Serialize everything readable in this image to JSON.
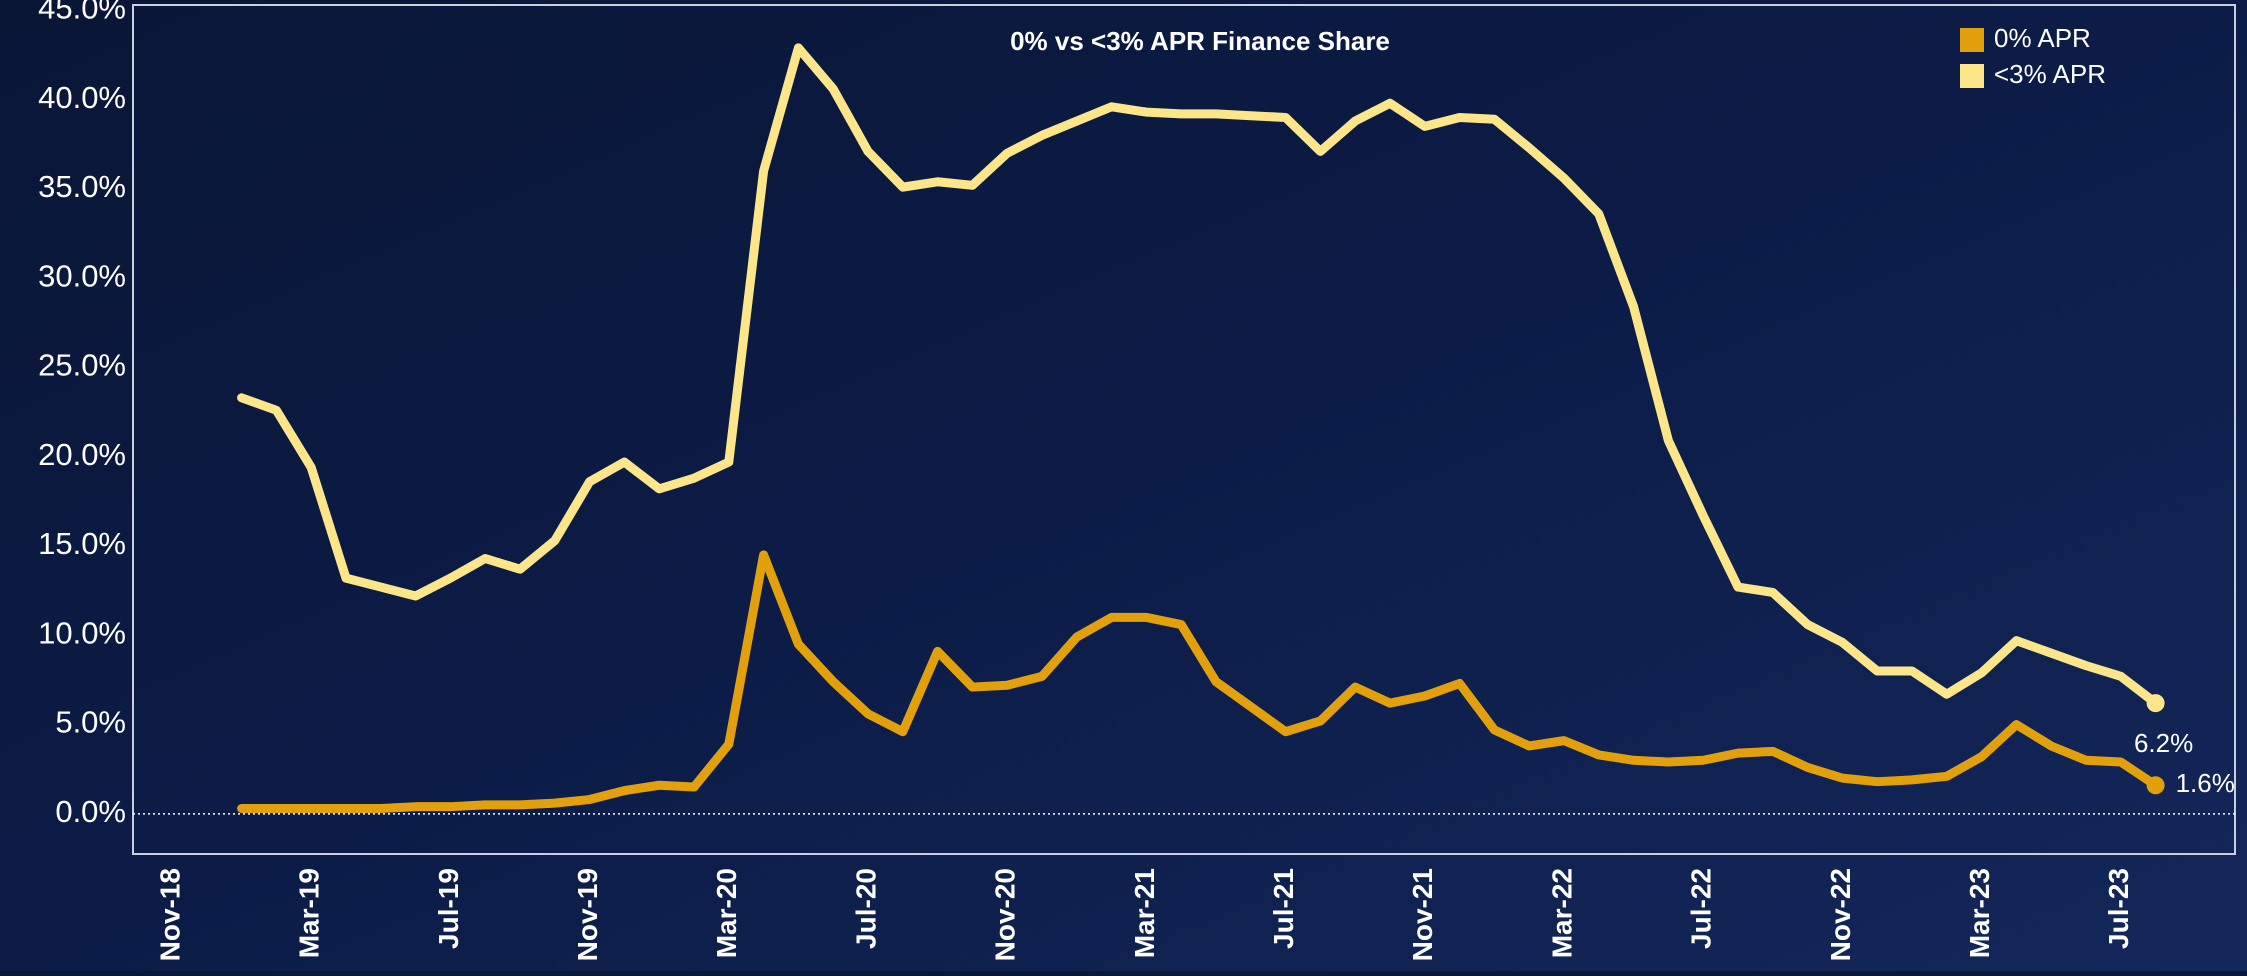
{
  "chart_data": {
    "type": "line",
    "title": "0% vs <3% APR Finance Share",
    "categories": [
      "Nov-18",
      null,
      null,
      null,
      "Mar-19",
      null,
      null,
      null,
      "Jul-19",
      null,
      null,
      null,
      "Nov-19",
      null,
      null,
      null,
      "Mar-20",
      null,
      null,
      null,
      "Jul-20",
      null,
      null,
      null,
      "Nov-20",
      null,
      null,
      null,
      "Mar-21",
      null,
      null,
      null,
      "Jul-21",
      null,
      null,
      null,
      "Nov-21",
      null,
      null,
      null,
      "Mar-22",
      null,
      null,
      null,
      "Jul-22",
      null,
      null,
      null,
      "Nov-22",
      null,
      null,
      null,
      "Mar-23",
      null,
      null,
      null,
      "Jul-23",
      null
    ],
    "series": [
      {
        "name": "0% APR",
        "color": "#e3a00d",
        "values": [
          null,
          null,
          0.3,
          0.3,
          0.3,
          0.3,
          0.3,
          0.4,
          0.4,
          0.5,
          0.5,
          0.6,
          0.8,
          1.3,
          1.6,
          1.5,
          3.9,
          14.5,
          9.5,
          7.4,
          5.6,
          4.6,
          9.1,
          7.1,
          7.2,
          7.7,
          9.9,
          11.0,
          11.0,
          10.6,
          7.4,
          6.0,
          4.6,
          5.2,
          7.1,
          6.2,
          6.6,
          7.3,
          4.7,
          3.8,
          4.1,
          3.3,
          3.0,
          2.9,
          3.0,
          3.4,
          3.5,
          2.6,
          2.0,
          1.8,
          1.9,
          2.1,
          3.2,
          5.0,
          3.8,
          3.0,
          2.9,
          1.6
        ],
        "value_labels": [
          null,
          null,
          null,
          null,
          null,
          null,
          null,
          null,
          null,
          null,
          null,
          null,
          null,
          null,
          null,
          null,
          null,
          null,
          null,
          null,
          null,
          null,
          null,
          null,
          null,
          null,
          null,
          null,
          null,
          null,
          null,
          null,
          null,
          null,
          null,
          null,
          null,
          null,
          null,
          null,
          null,
          null,
          null,
          null,
          null,
          null,
          null,
          null,
          null,
          null,
          null,
          null,
          null,
          null,
          null,
          null,
          null,
          "1.6%"
        ]
      },
      {
        "name": "<3% APR",
        "color": "#fde58a",
        "values": [
          null,
          null,
          23.3,
          22.6,
          19.4,
          13.2,
          12.7,
          12.2,
          13.2,
          14.3,
          13.7,
          15.3,
          18.6,
          19.7,
          18.2,
          18.8,
          19.7,
          36.0,
          42.9,
          40.6,
          37.1,
          35.1,
          35.4,
          35.2,
          37.0,
          38.0,
          38.8,
          39.6,
          39.3,
          39.2,
          39.2,
          39.1,
          39.0,
          37.1,
          38.8,
          39.8,
          38.5,
          39.0,
          38.9,
          37.3,
          35.6,
          33.6,
          28.4,
          20.9,
          16.7,
          12.7,
          12.4,
          10.6,
          9.6,
          8.0,
          8.0,
          6.7,
          7.9,
          9.7,
          9.0,
          8.3,
          7.7,
          6.2
        ],
        "value_labels": [
          null,
          null,
          null,
          null,
          null,
          null,
          null,
          null,
          null,
          null,
          null,
          null,
          null,
          null,
          null,
          null,
          null,
          null,
          null,
          null,
          null,
          null,
          null,
          null,
          null,
          null,
          null,
          null,
          null,
          null,
          null,
          null,
          null,
          null,
          null,
          null,
          null,
          null,
          null,
          null,
          null,
          null,
          null,
          null,
          null,
          null,
          null,
          null,
          null,
          null,
          null,
          null,
          null,
          null,
          null,
          null,
          null,
          "6.2%"
        ]
      }
    ],
    "ylim": [
      -2.25,
      45.3
    ],
    "yticks": [
      {
        "value": 0,
        "label": "0.0%"
      },
      {
        "value": 5,
        "label": "5.0%"
      },
      {
        "value": 10,
        "label": "10.0%"
      },
      {
        "value": 15,
        "label": "15.0%"
      },
      {
        "value": 20,
        "label": "20.0%"
      },
      {
        "value": 25,
        "label": "25.0%"
      },
      {
        "value": 30,
        "label": "30.0%"
      },
      {
        "value": 35,
        "label": "35.0%"
      },
      {
        "value": 40,
        "label": "40.0%"
      },
      {
        "value": 45,
        "label": "45.0%"
      }
    ],
    "legend": "upper right"
  }
}
